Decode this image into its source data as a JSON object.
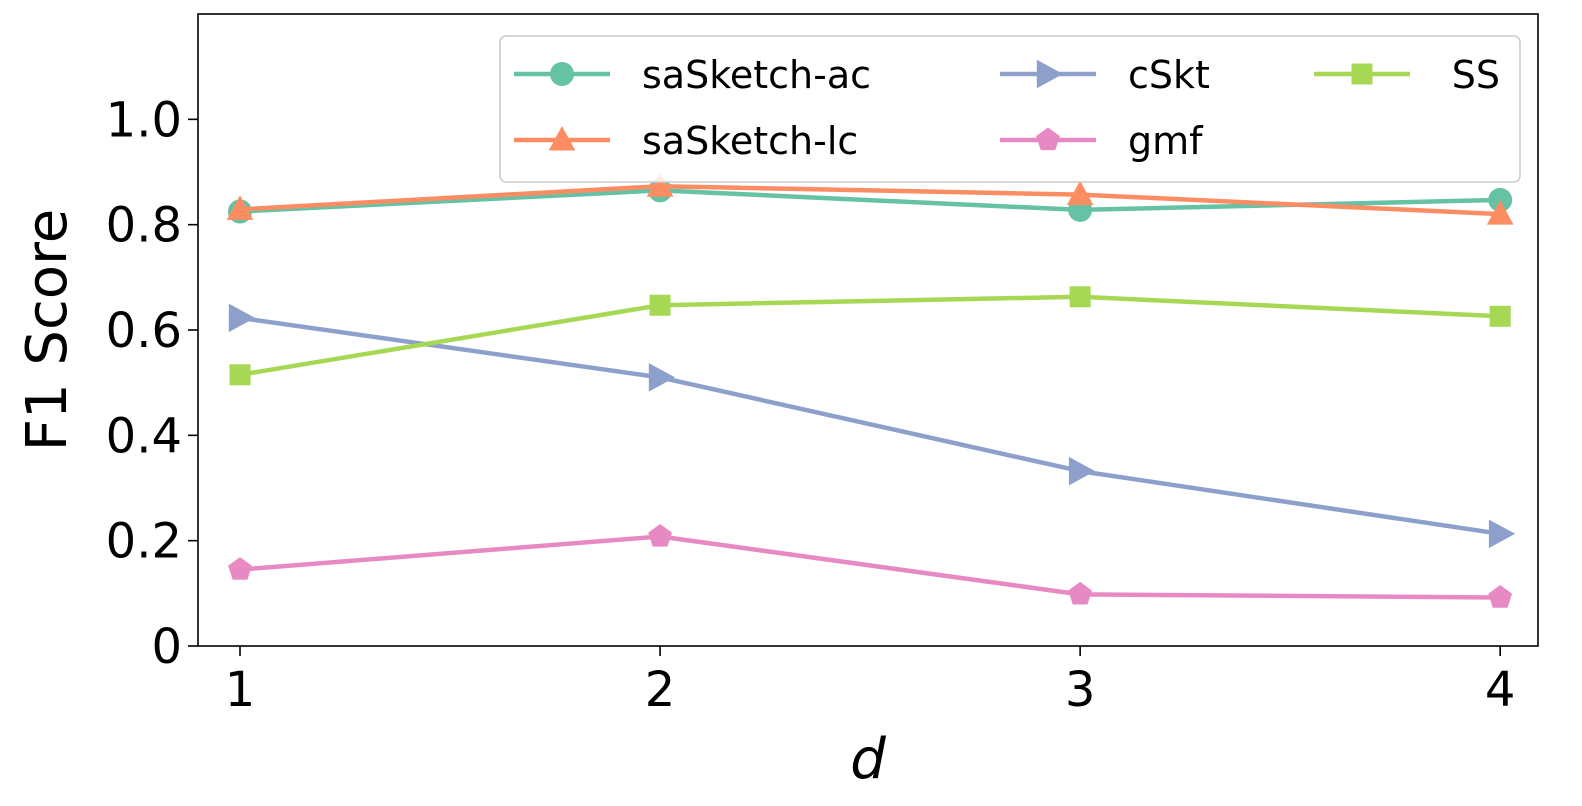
{
  "chart_data": {
    "type": "line",
    "xlabel": "d",
    "ylabel": "F1 Score",
    "x": [
      1,
      2,
      3,
      4
    ],
    "xticks": [
      "1",
      "2",
      "3",
      "4"
    ],
    "yticks": [
      "0",
      "0.2",
      "0.4",
      "0.6",
      "0.8",
      "1.0"
    ],
    "ylim": [
      0,
      1.2
    ],
    "xlim": [
      0.9,
      4.09
    ],
    "grid": false,
    "legend_position": "top-right",
    "series": [
      {
        "name": "saSketch-ac",
        "color": "#66c2a5",
        "marker": "circle",
        "values": [
          0.825,
          0.865,
          0.828,
          0.847
        ]
      },
      {
        "name": "saSketch-lc",
        "color": "#fc8d62",
        "marker": "triangle-up",
        "values": [
          0.829,
          0.873,
          0.857,
          0.82
        ]
      },
      {
        "name": "cSkt",
        "color": "#8da0cb",
        "marker": "triangle-right",
        "values": [
          0.623,
          0.51,
          0.332,
          0.213
        ]
      },
      {
        "name": "gmf",
        "color": "#e78ac3",
        "marker": "pentagon",
        "values": [
          0.145,
          0.208,
          0.098,
          0.092
        ]
      },
      {
        "name": "SS",
        "color": "#a6d854",
        "marker": "square",
        "values": [
          0.515,
          0.647,
          0.663,
          0.626
        ]
      }
    ]
  }
}
